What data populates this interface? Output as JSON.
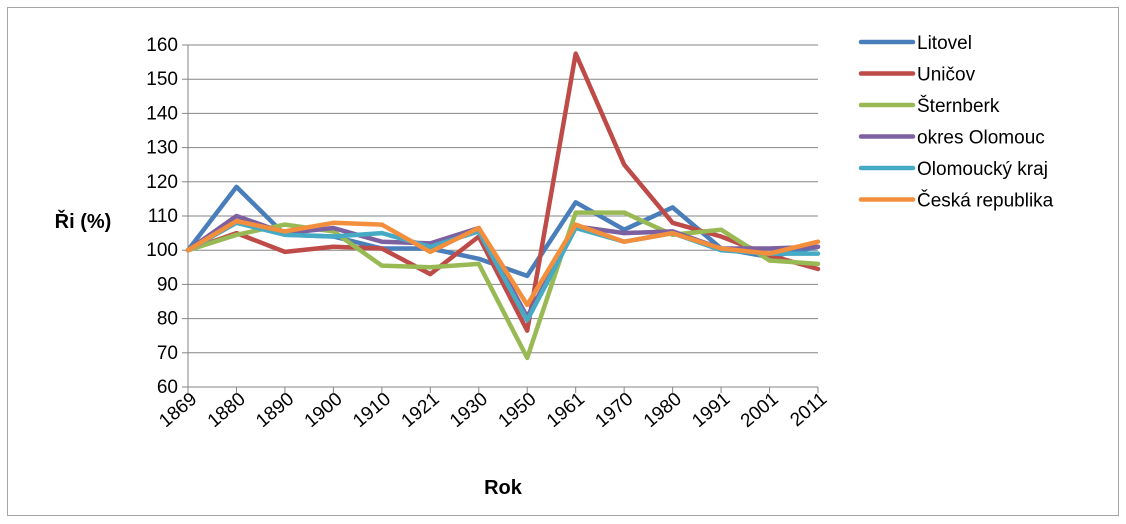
{
  "chart_data": {
    "type": "line",
    "xlabel": "Rok",
    "ylabel": "Ři (%)",
    "ylim": [
      60,
      160
    ],
    "yticks": [
      60,
      70,
      80,
      90,
      100,
      110,
      120,
      130,
      140,
      150,
      160
    ],
    "categories": [
      "1869",
      "1880",
      "1890",
      "1900",
      "1910",
      "1921",
      "1930",
      "1950",
      "1961",
      "1970",
      "1980",
      "1991",
      "2001",
      "2011"
    ],
    "grid": "horizontal",
    "legend_position": "right",
    "series": [
      {
        "name": "Litovel",
        "color": "#4a7ebb",
        "values": [
          100,
          118.5,
          104.5,
          104,
          100.5,
          100.5,
          97.5,
          92.5,
          114,
          106,
          112.5,
          100.5,
          98,
          101
        ]
      },
      {
        "name": "Uničov",
        "color": "#be4b48",
        "values": [
          100,
          105,
          99.5,
          101,
          100.5,
          93,
          104,
          76.5,
          157.5,
          125,
          108,
          104,
          98.5,
          94.5
        ]
      },
      {
        "name": "Šternberk",
        "color": "#98b954",
        "values": [
          100,
          104.5,
          107.5,
          105.5,
          95.5,
          95,
          96,
          68.5,
          111,
          111,
          104.5,
          106,
          97,
          96
        ]
      },
      {
        "name": "okres Olomouc",
        "color": "#7d60a0",
        "values": [
          100,
          110,
          105,
          106.5,
          102.5,
          102,
          106.5,
          80.5,
          107,
          105,
          105.5,
          100.5,
          100.5,
          101
        ]
      },
      {
        "name": "Olomoucký kraj",
        "color": "#46aac5",
        "values": [
          100,
          108,
          104.5,
          104,
          105,
          101,
          105.5,
          79.5,
          106.5,
          102.5,
          105,
          100,
          99,
          99
        ]
      },
      {
        "name": "Česká republika",
        "color": "#f38f3c",
        "values": [
          100,
          108.5,
          105.5,
          108,
          107.5,
          99.5,
          106.5,
          84,
          107.5,
          102.5,
          105,
          100.5,
          99,
          102.5
        ]
      }
    ]
  }
}
